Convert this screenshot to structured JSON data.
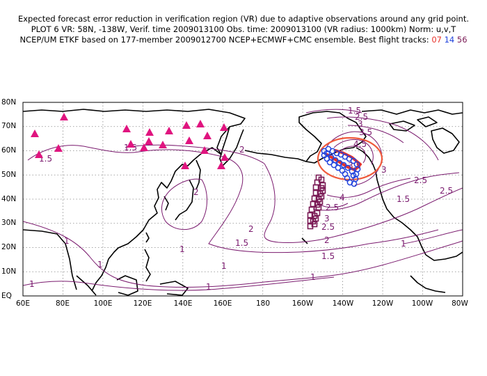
{
  "header": {
    "line1": "Expected forecast error reduction in verification region (VR) due to adaptive observations around any grid point.",
    "line2": "PLOT 6 VR: 58N, -138W, Verif. time 2009013100 Obs. time: 2009013100 (VR radius: 1000km) Norm: u,v,T",
    "line3_prefix": "NCEP/UM ETKF based on 177-member 2009012700 NCEP+ECMWF+CMC ensemble. Best flight tracks:",
    "track_a": "07",
    "track_b": "14",
    "track_c": "56"
  },
  "map": {
    "lon_labels": [
      "60E",
      "80E",
      "100E",
      "120E",
      "140E",
      "160E",
      "180",
      "160W",
      "140W",
      "120W",
      "100W",
      "80W"
    ],
    "lat_labels": [
      "EQ",
      "10N",
      "20N",
      "30N",
      "40N",
      "50N",
      "60N",
      "70N",
      "80N"
    ],
    "contour_labels": [
      "1.5",
      "1.5",
      "1.5",
      "2",
      "2",
      "2",
      "1",
      "1",
      "1",
      "1",
      "1",
      "1",
      "1",
      "1.5",
      "1.5",
      "2",
      "2.5",
      "2.5",
      "2.5",
      "3",
      "3",
      "3.5",
      "3.5",
      "4",
      "4.5",
      "2.5",
      "1.5",
      "2.5",
      "3",
      "1"
    ],
    "colors": {
      "contour": "#7a1a6e",
      "coast": "#000000",
      "grid": "#888888",
      "triangle": "#e0147f",
      "verification_circle": "#f05a3c",
      "track07": "#e8312a",
      "track14": "#2244dd",
      "track56": "#7a1a55"
    },
    "markers": "triangle",
    "verification_region": {
      "lat": 58,
      "lon": -138,
      "radius_km": 1000
    }
  }
}
